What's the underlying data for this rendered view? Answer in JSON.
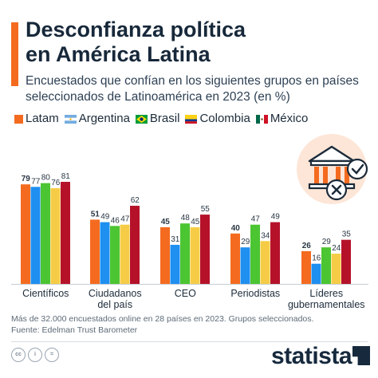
{
  "header": {
    "title_line1": "Desconfianza política",
    "title_line2": "en América Latina",
    "subtitle": "Encuestados que confían en los siguientes grupos en países seleccionados de Latinoamérica en 2023 (en %)"
  },
  "footer": {
    "note": "Más de 32.000 encuestados online en 28 países en 2023. Grupos seleccionados.",
    "source": "Fuente: Edelman Trust Barometer",
    "brand": "statista"
  },
  "colors": {
    "accent": "#f46b1f",
    "latam": "#f46b1f",
    "argentina": "#1f8ff0",
    "brasil": "#4cc532",
    "colombia": "#f6cc47",
    "mexico": "#b5122a"
  },
  "chart_data": {
    "type": "bar",
    "categories": [
      "Científicos",
      "Ciudadanos del país",
      "CEO",
      "Periodistas",
      "Líderes gubernamentales"
    ],
    "series": [
      {
        "name": "Latam",
        "values": [
          79,
          51,
          45,
          40,
          26
        ],
        "color": "#f46b1f",
        "icon": "orange-square"
      },
      {
        "name": "Argentina",
        "values": [
          77,
          49,
          31,
          29,
          16
        ],
        "color": "#1f8ff0",
        "icon": "argentina-flag-icon"
      },
      {
        "name": "Brasil",
        "values": [
          80,
          46,
          48,
          47,
          29
        ],
        "color": "#4cc532",
        "icon": "brazil-flag-icon"
      },
      {
        "name": "Colombia",
        "values": [
          76,
          47,
          45,
          34,
          24
        ],
        "color": "#f6cc47",
        "icon": "colombia-flag-icon"
      },
      {
        "name": "México",
        "values": [
          81,
          62,
          55,
          49,
          35
        ],
        "color": "#b5122a",
        "icon": "mexico-flag-icon"
      }
    ],
    "ylim": [
      0,
      100
    ],
    "grid": false,
    "legend_position": "top",
    "bold_series": "Latam"
  }
}
